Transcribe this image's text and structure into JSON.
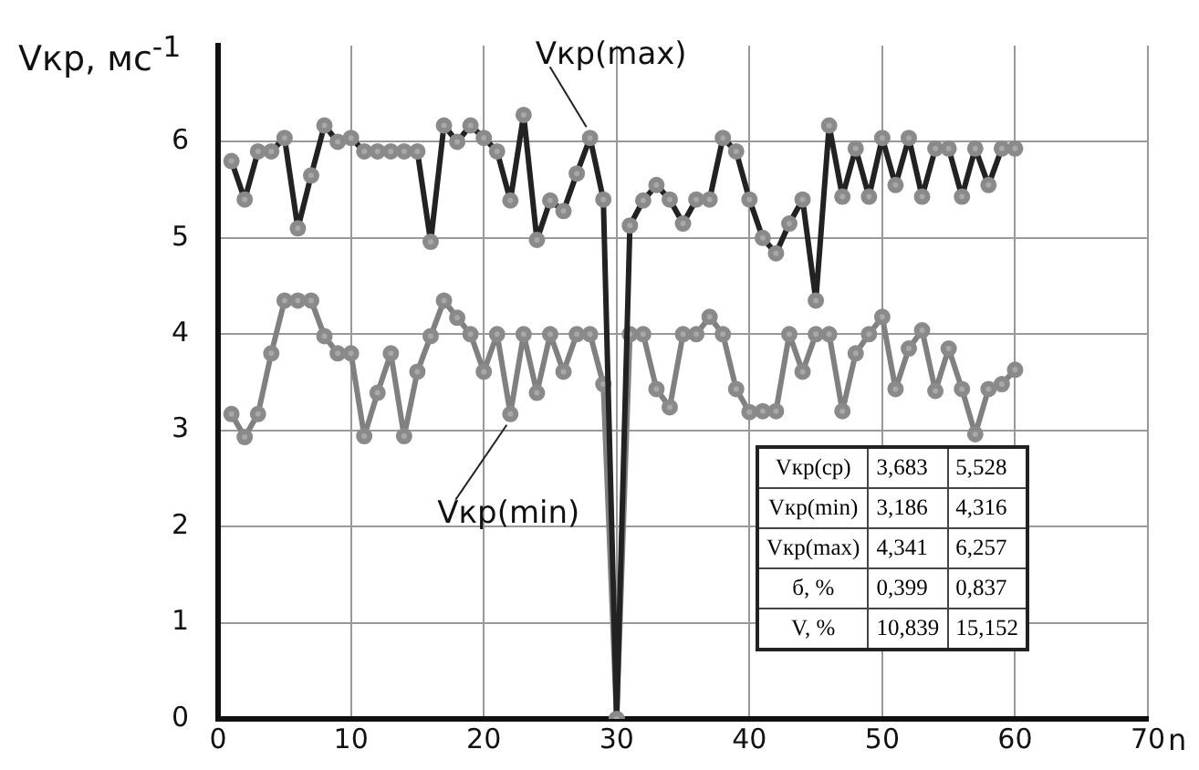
{
  "chart_data": {
    "type": "line",
    "ylabel": "Vкр, мс$^{-1}$",
    "xlabel": "n",
    "x": [
      1,
      2,
      3,
      4,
      5,
      6,
      7,
      8,
      9,
      10,
      11,
      12,
      13,
      14,
      15,
      16,
      17,
      18,
      19,
      20,
      21,
      22,
      23,
      24,
      25,
      26,
      27,
      28,
      29,
      30,
      31,
      32,
      33,
      34,
      35,
      36,
      37,
      38,
      39,
      40,
      41,
      42,
      43,
      44,
      45,
      46,
      47,
      48,
      49,
      50,
      51,
      52,
      53,
      54,
      55,
      56,
      57,
      58,
      59,
      60
    ],
    "series": [
      {
        "name": "Vкр(max)",
        "color": "#222222",
        "values": [
          5.8,
          5.4,
          5.9,
          5.9,
          6.04,
          5.1,
          5.65,
          6.17,
          6.0,
          6.04,
          5.9,
          5.9,
          5.9,
          5.9,
          5.9,
          4.96,
          6.17,
          6.0,
          6.17,
          6.04,
          5.9,
          5.39,
          6.28,
          4.98,
          5.39,
          5.28,
          5.67,
          6.04,
          5.4,
          0,
          5.13,
          5.39,
          5.55,
          5.4,
          5.15,
          5.4,
          5.4,
          6.04,
          5.9,
          5.4,
          5.0,
          4.84,
          5.15,
          5.4,
          4.35,
          6.17,
          5.43,
          5.93,
          5.43,
          6.04,
          5.55,
          6.04,
          5.43,
          5.93,
          5.93,
          5.43,
          5.93,
          5.55,
          5.93,
          5.93
        ]
      },
      {
        "name": "Vкр(min)",
        "color": "#808080",
        "values": [
          3.17,
          2.93,
          3.17,
          3.8,
          4.35,
          4.35,
          4.35,
          3.98,
          3.8,
          3.8,
          2.94,
          3.39,
          3.8,
          2.94,
          3.61,
          3.98,
          4.35,
          4.17,
          4.0,
          3.61,
          4.0,
          3.17,
          4.0,
          3.39,
          4.0,
          3.61,
          4.0,
          4.0,
          3.48,
          0,
          4.0,
          4.0,
          3.43,
          3.24,
          4.0,
          4.0,
          4.18,
          4.0,
          3.43,
          3.19,
          3.2,
          3.2,
          4.0,
          3.61,
          4.0,
          4.0,
          3.2,
          3.8,
          4.0,
          4.18,
          3.43,
          3.85,
          4.04,
          3.41,
          3.85,
          3.43,
          2.96,
          3.43,
          3.48,
          3.63
        ]
      }
    ],
    "annotations": [
      "Vкр(ср)",
      "3,683",
      "5,528",
      "Vкр(min)",
      "3,186",
      "4,316",
      "Vкр(max)",
      "4,341",
      "6,257",
      "б, %",
      "0,399",
      "0,837",
      "V, %",
      "10,839",
      "15,152"
    ],
    "xlim": [
      0,
      70
    ],
    "xticks": [
      0,
      10,
      20,
      30,
      40,
      50,
      60,
      70
    ],
    "ylim": [
      0,
      7
    ],
    "yticks": [
      0,
      1,
      2,
      3,
      4,
      5,
      6
    ],
    "grid": true,
    "legend": false,
    "marker": "circle",
    "line_style": "solid"
  }
}
